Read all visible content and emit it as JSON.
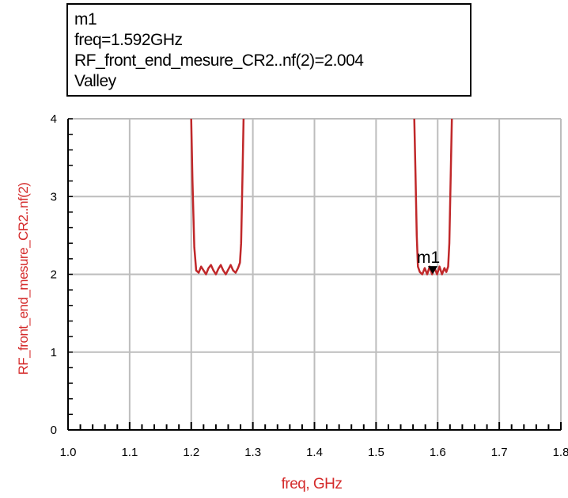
{
  "marker_readout": {
    "name": "m1",
    "freq_line": "freq=1.592GHz",
    "value_line": "RF_front_end_mesure_CR2..nf(2)=2.004",
    "type": "Valley"
  },
  "chart_data": {
    "type": "line",
    "title": "",
    "xlabel": "freq, GHz",
    "ylabel": "RF_front_end_mesure_CR2..nf(2)",
    "xlim": [
      1.0,
      1.8
    ],
    "ylim": [
      0,
      4
    ],
    "xticks": [
      "1.0",
      "1.1",
      "1.2",
      "1.3",
      "1.4",
      "1.5",
      "1.6",
      "1.7",
      "1.8"
    ],
    "yticks": [
      "0",
      "1",
      "2",
      "3",
      "4"
    ],
    "grid": true,
    "colors": {
      "series": "#c0282a",
      "label": "#d42a2a",
      "grid": "#bdbdbd",
      "axis": "#000000"
    },
    "series": [
      {
        "name": "",
        "segments": [
          {
            "x": [
              1.2,
              1.202,
              1.205,
              1.208,
              1.212,
              1.216,
              1.22,
              1.224,
              1.228,
              1.232,
              1.236,
              1.24,
              1.244,
              1.248,
              1.252,
              1.256,
              1.26,
              1.264,
              1.268,
              1.272,
              1.276,
              1.279,
              1.281,
              1.283,
              1.285
            ],
            "y": [
              4.0,
              3.2,
              2.35,
              2.05,
              2.02,
              2.1,
              2.05,
              2.0,
              2.08,
              2.12,
              2.05,
              2.0,
              2.07,
              2.12,
              2.05,
              2.0,
              2.06,
              2.12,
              2.05,
              2.02,
              2.08,
              2.15,
              2.4,
              3.2,
              4.0
            ]
          },
          {
            "x": [
              1.562,
              1.564,
              1.566,
              1.568,
              1.571,
              1.575,
              1.579,
              1.583,
              1.587,
              1.591,
              1.595,
              1.599,
              1.603,
              1.607,
              1.611,
              1.614,
              1.617,
              1.619,
              1.621,
              1.623
            ],
            "y": [
              4.0,
              3.3,
              2.5,
              2.1,
              2.03,
              2.0,
              2.08,
              2.0,
              2.1,
              2.0,
              2.08,
              2.0,
              2.1,
              2.0,
              2.08,
              2.03,
              2.1,
              2.4,
              3.2,
              4.0
            ]
          }
        ]
      }
    ],
    "markers": [
      {
        "label": "m1",
        "x": 1.592,
        "y": 2.004
      }
    ]
  }
}
